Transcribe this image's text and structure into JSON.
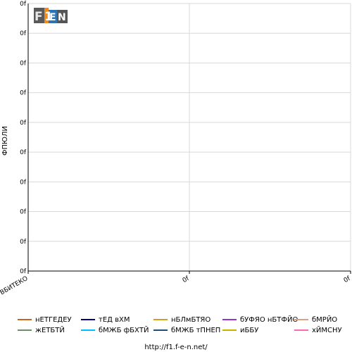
{
  "chart_data": {
    "type": "line",
    "title": "",
    "ylabel": "ФПЮЛИ",
    "xlabel": "",
    "x_categories": [
      "ВБИТЕКО",
      "0f",
      "0f"
    ],
    "y_tick_labels": [
      "0f",
      "0f",
      "0f",
      "0f",
      "0f",
      "0f",
      "0f",
      "0f",
      "0f",
      "0f"
    ],
    "grid": true,
    "legend_position": "bottom",
    "series": [
      {
        "name": "нЕТГЕДЕУ",
        "color": "#c8641e",
        "values": []
      },
      {
        "name": "тЕД вХМ",
        "color": "#000080",
        "values": []
      },
      {
        "name": "нБЛмБТЯО",
        "color": "#d4a017",
        "values": []
      },
      {
        "name": "бУФЯО нБТФЙО",
        "color": "#9932cc",
        "values": []
      },
      {
        "name": "бМРЙО",
        "color": "#e0a080",
        "values": []
      },
      {
        "name": "жЕТБТЙ",
        "color": "#6b8e6b",
        "values": []
      },
      {
        "name": "бМЖБ фБХТЙ",
        "color": "#00bfff",
        "values": []
      },
      {
        "name": "бМЖБ тПНЕП",
        "color": "#1f4e79",
        "values": []
      },
      {
        "name": "иББУ",
        "color": "#c8b400",
        "values": []
      },
      {
        "name": "хЙМСНУ",
        "color": "#ff69b4",
        "values": []
      }
    ]
  },
  "logo": {
    "text": "F1EN",
    "icon": "f1-logo-icon"
  },
  "footer": {
    "url": "http://f1.f-e-n.net/"
  }
}
